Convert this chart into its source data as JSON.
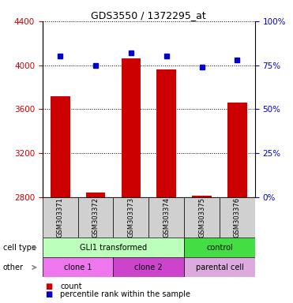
{
  "title": "GDS3550 / 1372295_at",
  "samples": [
    "GSM303371",
    "GSM303372",
    "GSM303373",
    "GSM303374",
    "GSM303375",
    "GSM303376"
  ],
  "counts": [
    3720,
    2840,
    4060,
    3960,
    2815,
    3660
  ],
  "percentiles": [
    80,
    75,
    82,
    80,
    74,
    78
  ],
  "ylim_left": [
    2800,
    4400
  ],
  "ylim_right": [
    0,
    100
  ],
  "yticks_left": [
    2800,
    3200,
    3600,
    4000,
    4400
  ],
  "yticks_right": [
    0,
    25,
    50,
    75,
    100
  ],
  "bar_color": "#cc0000",
  "dot_color": "#0000cc",
  "bar_width": 0.55,
  "cell_type_groups": [
    {
      "label": "GLI1 transformed",
      "start": 0,
      "end": 3,
      "color": "#bbffbb"
    },
    {
      "label": "control",
      "start": 4,
      "end": 5,
      "color": "#44dd44"
    }
  ],
  "other_groups": [
    {
      "label": "clone 1",
      "start": 0,
      "end": 1,
      "color": "#ee77ee"
    },
    {
      "label": "clone 2",
      "start": 2,
      "end": 3,
      "color": "#cc44cc"
    },
    {
      "label": "parental cell",
      "start": 4,
      "end": 5,
      "color": "#ddaadd"
    }
  ],
  "legend_count_label": "count",
  "legend_percentile_label": "percentile rank within the sample",
  "cell_type_label": "cell type",
  "other_label": "other",
  "sample_bg_color": "#d0d0d0",
  "plot_bg": "#ffffff",
  "left_tick_color": "#cc0000",
  "right_tick_color": "#0000cc"
}
